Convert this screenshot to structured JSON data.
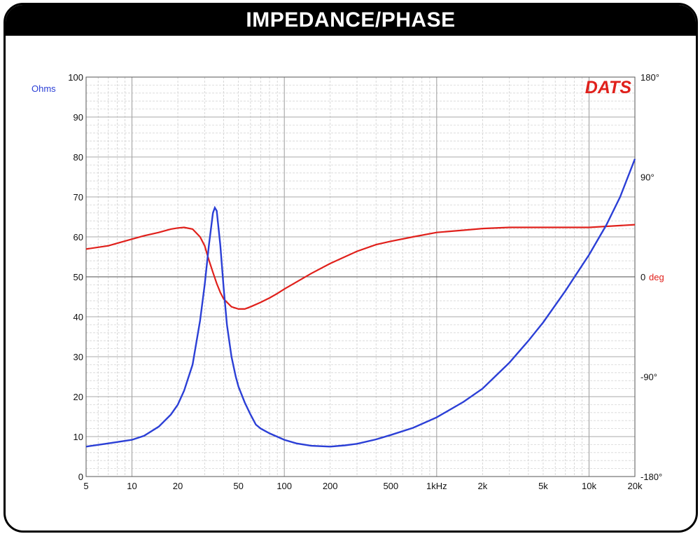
{
  "title": "IMPEDANCE/PHASE",
  "brand": "DATS",
  "colors": {
    "impedance": "#2b3fd6",
    "phase": "#e0201b",
    "frame": "#000000"
  },
  "chart_data": {
    "type": "line",
    "x_scale": "log",
    "xlim": [
      5,
      20000
    ],
    "x_ticks": [
      {
        "value": 5,
        "label": "5"
      },
      {
        "value": 10,
        "label": "10"
      },
      {
        "value": 20,
        "label": "20"
      },
      {
        "value": 50,
        "label": "50"
      },
      {
        "value": 100,
        "label": "100"
      },
      {
        "value": 200,
        "label": "200"
      },
      {
        "value": 500,
        "label": "500"
      },
      {
        "value": 1000,
        "label": "1kHz"
      },
      {
        "value": 2000,
        "label": "2k"
      },
      {
        "value": 5000,
        "label": "5k"
      },
      {
        "value": 10000,
        "label": "10k"
      },
      {
        "value": 20000,
        "label": "20k"
      }
    ],
    "ylim": [
      0,
      100
    ],
    "ylabel": "Ohms",
    "y_ticks": [
      0,
      10,
      20,
      30,
      40,
      50,
      60,
      70,
      80,
      90,
      100
    ],
    "y2lim": [
      -180,
      180
    ],
    "y2label": "deg",
    "y2_ticks": [
      {
        "value": 180,
        "label": "180°"
      },
      {
        "value": 90,
        "label": "90°"
      },
      {
        "value": 0,
        "label": "0"
      },
      {
        "value": -90,
        "label": "-90°"
      },
      {
        "value": -180,
        "label": "-180°"
      }
    ],
    "grid": true,
    "series": [
      {
        "axis": "left",
        "points": [
          [
            5,
            7.5
          ],
          [
            7,
            8.3
          ],
          [
            10,
            9.2
          ],
          [
            12,
            10.2
          ],
          [
            15,
            12.5
          ],
          [
            18,
            15.5
          ],
          [
            20,
            18
          ],
          [
            22,
            21.5
          ],
          [
            25,
            28
          ],
          [
            28,
            39
          ],
          [
            30,
            48
          ],
          [
            32,
            58
          ],
          [
            34,
            66
          ],
          [
            35,
            67.3
          ],
          [
            36,
            66.5
          ],
          [
            38,
            58
          ],
          [
            40,
            47
          ],
          [
            42,
            38
          ],
          [
            45,
            30
          ],
          [
            48,
            25
          ],
          [
            50,
            22.5
          ],
          [
            55,
            18.5
          ],
          [
            60,
            15.5
          ],
          [
            65,
            13
          ],
          [
            70,
            12
          ],
          [
            80,
            10.8
          ],
          [
            100,
            9.2
          ],
          [
            120,
            8.3
          ],
          [
            150,
            7.7
          ],
          [
            200,
            7.5
          ],
          [
            250,
            7.8
          ],
          [
            300,
            8.2
          ],
          [
            400,
            9.3
          ],
          [
            500,
            10.4
          ],
          [
            700,
            12.2
          ],
          [
            1000,
            14.8
          ],
          [
            1500,
            18.7
          ],
          [
            2000,
            22
          ],
          [
            3000,
            28.5
          ],
          [
            4000,
            34
          ],
          [
            5000,
            38.6
          ],
          [
            7000,
            46.5
          ],
          [
            10000,
            55.5
          ],
          [
            13000,
            63
          ],
          [
            16000,
            70
          ],
          [
            20000,
            79.5
          ]
        ]
      },
      {
        "axis": "right",
        "points": [
          [
            5,
            25
          ],
          [
            7,
            28
          ],
          [
            10,
            34
          ],
          [
            12,
            37
          ],
          [
            15,
            40
          ],
          [
            18,
            43
          ],
          [
            20,
            44
          ],
          [
            22,
            44.5
          ],
          [
            25,
            43
          ],
          [
            28,
            36
          ],
          [
            30,
            28
          ],
          [
            32,
            15
          ],
          [
            34,
            4
          ],
          [
            36,
            -6
          ],
          [
            38,
            -14
          ],
          [
            40,
            -20
          ],
          [
            45,
            -27
          ],
          [
            50,
            -29
          ],
          [
            55,
            -29
          ],
          [
            60,
            -27
          ],
          [
            70,
            -23
          ],
          [
            80,
            -19
          ],
          [
            90,
            -15
          ],
          [
            100,
            -11
          ],
          [
            150,
            3
          ],
          [
            200,
            12
          ],
          [
            300,
            23
          ],
          [
            400,
            29
          ],
          [
            500,
            32
          ],
          [
            700,
            36
          ],
          [
            1000,
            40
          ],
          [
            1500,
            42
          ],
          [
            2000,
            43.5
          ],
          [
            3000,
            44.5
          ],
          [
            5000,
            44.5
          ],
          [
            10000,
            44.5
          ],
          [
            20000,
            47
          ]
        ]
      }
    ]
  }
}
